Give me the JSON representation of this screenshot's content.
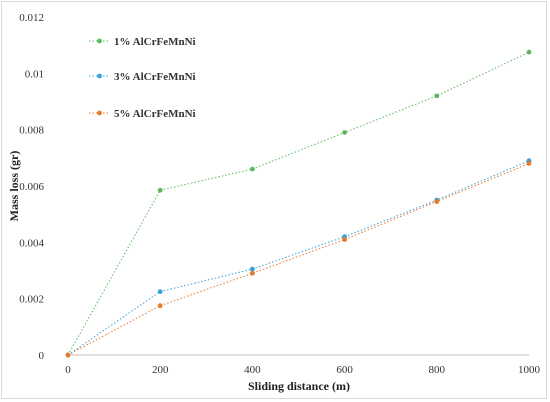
{
  "chart_data": {
    "type": "line",
    "xlabel": "Sliding distance (m)",
    "ylabel": "Mass loss (gr)",
    "x": [
      0,
      200,
      400,
      600,
      800,
      1000
    ],
    "xlim": [
      0,
      1000
    ],
    "ylim": [
      0,
      0.012
    ],
    "x_ticks": [
      "0",
      "200",
      "400",
      "600",
      "800",
      "1000"
    ],
    "y_ticks": [
      "0",
      "0.002",
      "0.004",
      "0.006",
      "0.008",
      "0.01",
      "0.012"
    ],
    "grid": false,
    "legend_position": "top-left",
    "series": [
      {
        "name": "1% AlCrFeMnNi",
        "color": "#5cb85c",
        "values": [
          0,
          0.00585,
          0.0066,
          0.0079,
          0.0092,
          0.01075
        ]
      },
      {
        "name": "3% AlCrFeMnNi",
        "color": "#3aa0d8",
        "values": [
          0,
          0.00225,
          0.00305,
          0.0042,
          0.0055,
          0.0069
        ]
      },
      {
        "name": "5% AlCrFeMnNi",
        "color": "#e8782a",
        "values": [
          0,
          0.00175,
          0.0029,
          0.0041,
          0.00545,
          0.0068
        ]
      }
    ]
  }
}
